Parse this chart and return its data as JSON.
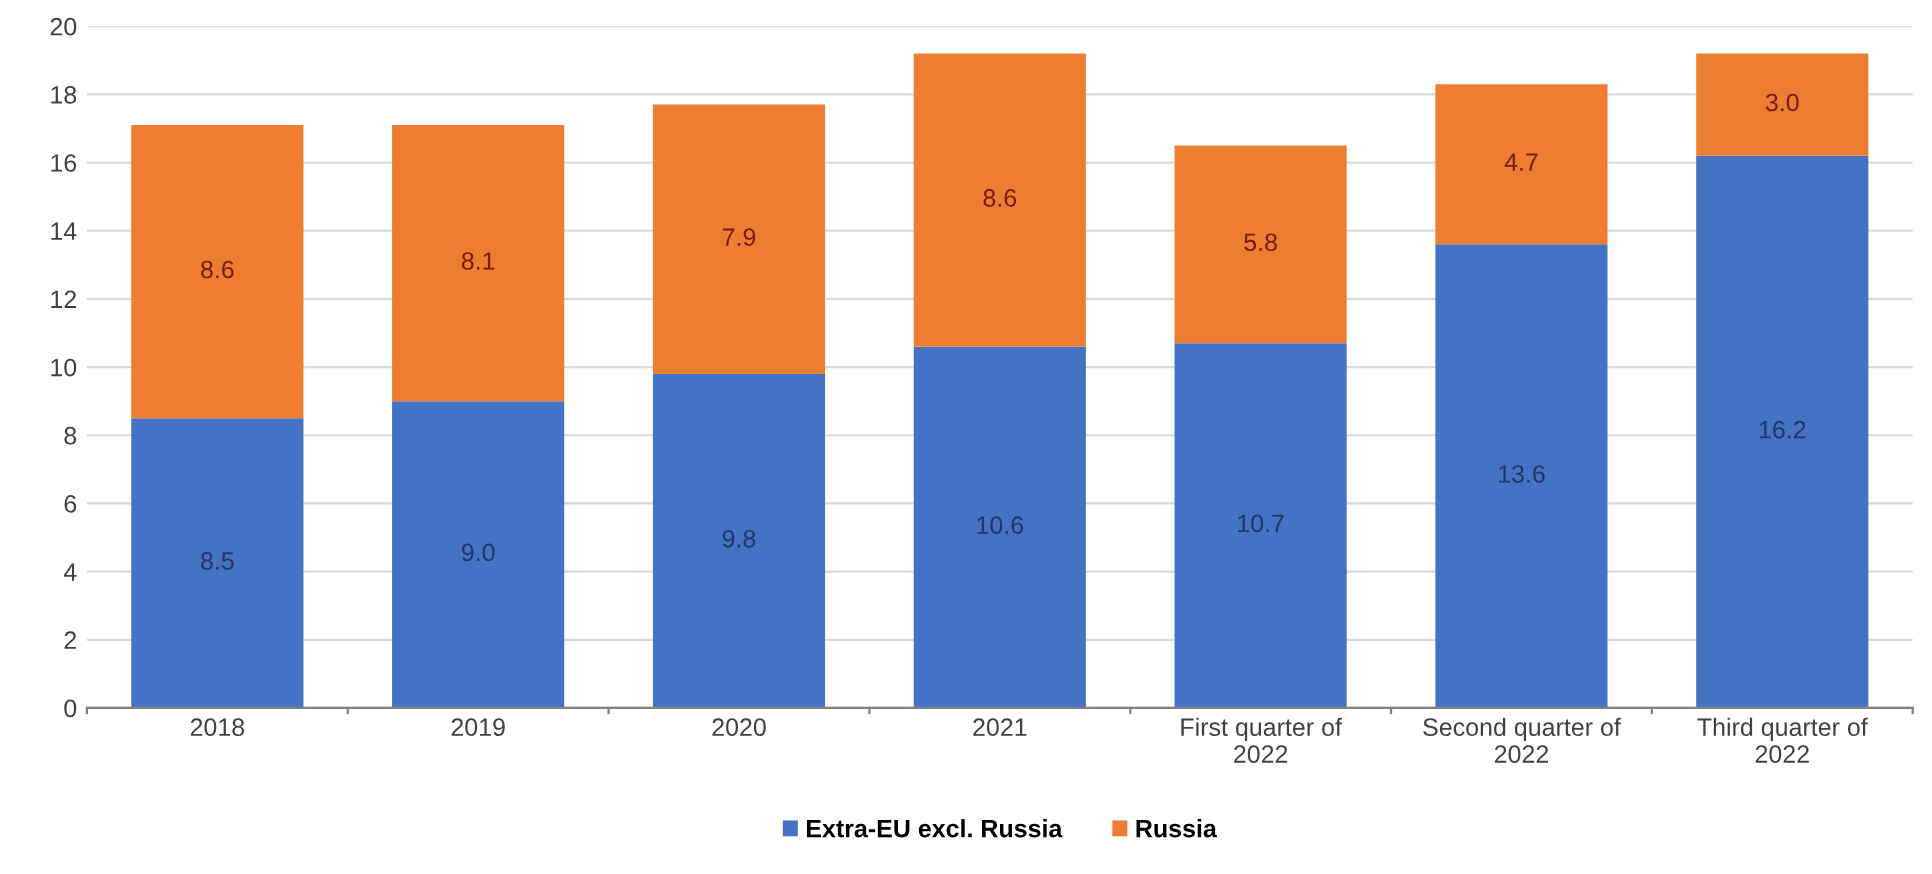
{
  "chart_data": {
    "type": "bar",
    "stacked": true,
    "categories": [
      "2018",
      "2019",
      "2020",
      "2021",
      "First quarter of\n2022",
      "Second quarter of\n2022",
      "Third quarter of\n2022"
    ],
    "series": [
      {
        "name": "Extra-EU excl. Russia",
        "color": "#4472c4",
        "values": [
          8.5,
          9.0,
          9.8,
          10.6,
          10.7,
          13.6,
          16.2
        ],
        "value_labels": [
          "8.5",
          "9.0",
          "9.8",
          "10.6",
          "10.7",
          "13.6",
          "16.2"
        ]
      },
      {
        "name": "Russia",
        "color": "#ed7d31",
        "values": [
          8.6,
          8.1,
          7.9,
          8.6,
          5.8,
          4.7,
          3.0
        ],
        "value_labels": [
          "8.6",
          "8.1",
          "7.9",
          "8.6",
          "5.8",
          "4.7",
          "3.0"
        ]
      }
    ],
    "ylim": [
      0,
      20
    ],
    "yticks": [
      0,
      2,
      4,
      6,
      8,
      10,
      12,
      14,
      16,
      18,
      20
    ],
    "grid": "y",
    "legend": "bottom"
  }
}
